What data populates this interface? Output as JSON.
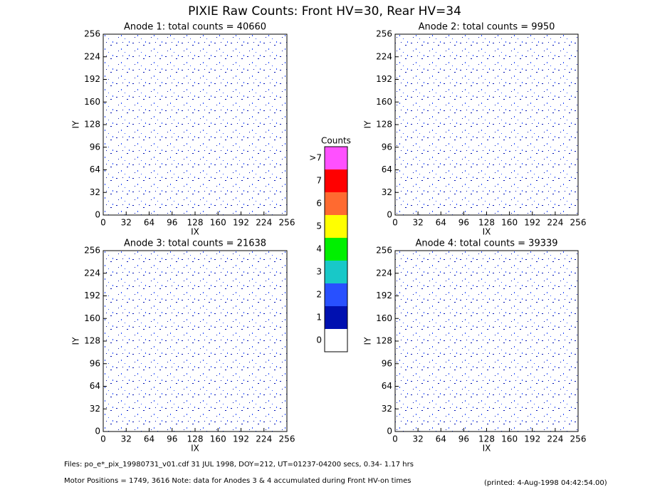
{
  "title": "PIXIE Raw Counts:  Front HV=30, Rear HV=34",
  "chart_data": [
    {
      "type": "heatmap",
      "title": "Anode 1: total counts = 40660",
      "x_label": "IX",
      "y_label": "IY",
      "xlim": [
        0,
        256
      ],
      "ylim": [
        0,
        256
      ],
      "xticks": [
        0,
        32,
        64,
        96,
        128,
        160,
        192,
        224,
        256
      ],
      "yticks": [
        0,
        32,
        64,
        96,
        128,
        160,
        192,
        224,
        256
      ]
    },
    {
      "type": "heatmap",
      "title": "Anode 2: total counts = 9950",
      "x_label": "IX",
      "y_label": "IY",
      "xlim": [
        0,
        256
      ],
      "ylim": [
        0,
        256
      ],
      "xticks": [
        0,
        32,
        64,
        96,
        128,
        160,
        192,
        224,
        256
      ],
      "yticks": [
        0,
        32,
        64,
        96,
        128,
        160,
        192,
        224,
        256
      ]
    },
    {
      "type": "heatmap",
      "title": "Anode 3: total counts = 21638",
      "x_label": "IX",
      "y_label": "IY",
      "xlim": [
        0,
        256
      ],
      "ylim": [
        0,
        256
      ],
      "xticks": [
        0,
        32,
        64,
        96,
        128,
        160,
        192,
        224,
        256
      ],
      "yticks": [
        0,
        32,
        64,
        96,
        128,
        160,
        192,
        224,
        256
      ]
    },
    {
      "type": "heatmap",
      "title": "Anode 4: total counts = 39339",
      "x_label": "IX",
      "y_label": "IY",
      "xlim": [
        0,
        256
      ],
      "ylim": [
        0,
        256
      ],
      "xticks": [
        0,
        32,
        64,
        96,
        128,
        160,
        192,
        224,
        256
      ],
      "yticks": [
        0,
        32,
        64,
        96,
        128,
        160,
        192,
        224,
        256
      ]
    }
  ],
  "colorbar": {
    "title": "Counts",
    "labels": [
      "0",
      "1",
      "2",
      "3",
      "4",
      "5",
      "6",
      "7",
      ">7"
    ],
    "colors": [
      "#ffffff",
      "#0010b0",
      "#2850ff",
      "#18c8c8",
      "#00f000",
      "#ffff00",
      "#ff6a30",
      "#ff0000",
      "#ff50ff"
    ]
  },
  "footer": {
    "files": "Files: po_e*_pix_19980731_v01.cdf    31 JUL 1998, DOY=212, UT=01237-04200 secs,  0.34- 1.17 hrs",
    "motor": "Motor Positions = 1749, 3616   Note: data for Anodes 3 & 4 accumulated during Front HV-on times",
    "printed": "(printed:  4-Aug-1998 04:42:54.00)"
  }
}
